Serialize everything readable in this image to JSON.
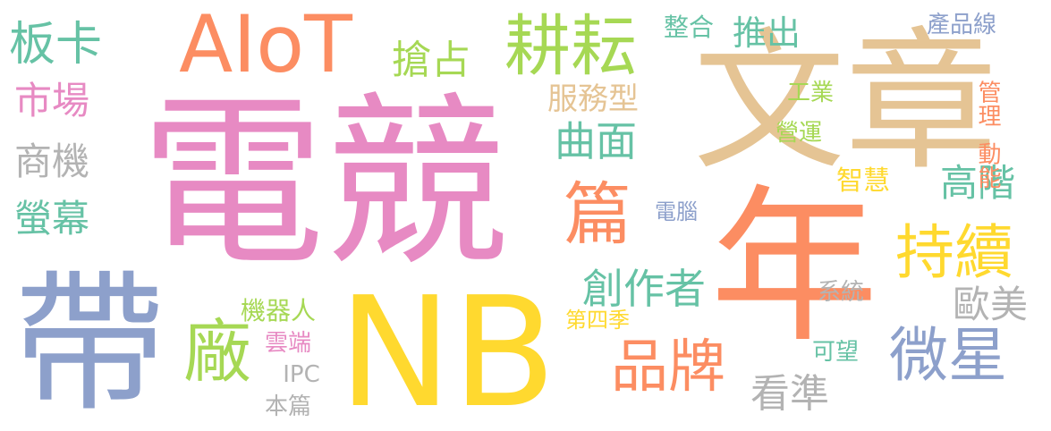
{
  "word_cloud": {
    "words": [
      {
        "text": "電競",
        "color": "#e78ac3"
      },
      {
        "text": "文章",
        "color": "#e5c494"
      },
      {
        "text": "年",
        "color": "#fc8d62"
      },
      {
        "text": "NB",
        "color": "#ffd92f"
      },
      {
        "text": "帶",
        "color": "#8da0cb"
      },
      {
        "text": "AIoT",
        "color": "#fc8d62"
      },
      {
        "text": "耕耘",
        "color": "#a6d854"
      },
      {
        "text": "板卡",
        "color": "#66c2a5"
      },
      {
        "text": "市場",
        "color": "#e78ac3"
      },
      {
        "text": "商機",
        "color": "#b3b3b3"
      },
      {
        "text": "螢幕",
        "color": "#66c2a5"
      },
      {
        "text": "搶占",
        "color": "#a6d854"
      },
      {
        "text": "服務型",
        "color": "#e5c494"
      },
      {
        "text": "曲面",
        "color": "#66c2a5"
      },
      {
        "text": "篇",
        "color": "#fc8d62"
      },
      {
        "text": "創作者",
        "color": "#66c2a5"
      },
      {
        "text": "廠",
        "color": "#a6d854"
      },
      {
        "text": "品牌",
        "color": "#fc8d62"
      },
      {
        "text": "看準",
        "color": "#b3b3b3"
      },
      {
        "text": "持續",
        "color": "#ffd92f"
      },
      {
        "text": "微星",
        "color": "#8da0cb"
      },
      {
        "text": "歐美",
        "color": "#b3b3b3"
      },
      {
        "text": "高階",
        "color": "#66c2a5"
      },
      {
        "text": "推出",
        "color": "#66c2a5"
      },
      {
        "text": "整合",
        "color": "#66c2a5"
      },
      {
        "text": "產品線",
        "color": "#8da0cb"
      },
      {
        "text": "管理",
        "color": "#fc8d62"
      },
      {
        "text": "動能",
        "color": "#fc8d62"
      },
      {
        "text": "工業",
        "color": "#a6d854"
      },
      {
        "text": "營運",
        "color": "#a6d854"
      },
      {
        "text": "智慧",
        "color": "#ffd92f"
      },
      {
        "text": "電腦",
        "color": "#8da0cb"
      },
      {
        "text": "系統",
        "color": "#b3b3b3"
      },
      {
        "text": "可望",
        "color": "#66c2a5"
      },
      {
        "text": "第四季",
        "color": "#ffd92f"
      },
      {
        "text": "機器人",
        "color": "#a6d854"
      },
      {
        "text": "雲端",
        "color": "#e78ac3"
      },
      {
        "text": "IPC",
        "color": "#b3b3b3"
      },
      {
        "text": "本篇",
        "color": "#b3b3b3"
      }
    ]
  }
}
